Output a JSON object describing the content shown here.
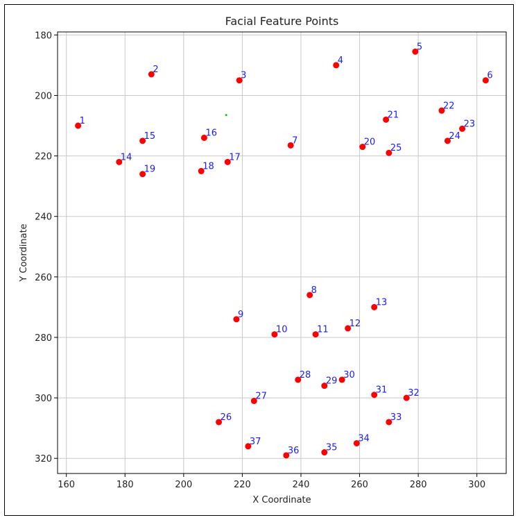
{
  "chart_data": {
    "type": "scatter",
    "title": "Facial Feature Points",
    "xlabel": "X Coordinate",
    "ylabel": "Y Coordinate",
    "xlim": [
      157,
      310
    ],
    "ylim": [
      325,
      179
    ],
    "y_inverted": true,
    "grid": true,
    "xticks": [
      160,
      180,
      200,
      220,
      240,
      260,
      280,
      300
    ],
    "yticks": [
      180,
      200,
      220,
      240,
      260,
      280,
      300,
      320
    ],
    "point_color": "#ff0000",
    "label_color": "#1a1aff",
    "points": [
      {
        "label": "1",
        "x": 164,
        "y": 210
      },
      {
        "label": "2",
        "x": 189,
        "y": 193
      },
      {
        "label": "3",
        "x": 219,
        "y": 195
      },
      {
        "label": "4",
        "x": 252,
        "y": 190
      },
      {
        "label": "5",
        "x": 279,
        "y": 185.5
      },
      {
        "label": "6",
        "x": 303,
        "y": 195
      },
      {
        "label": "7",
        "x": 236.5,
        "y": 216.5
      },
      {
        "label": "8",
        "x": 243,
        "y": 266
      },
      {
        "label": "9",
        "x": 218,
        "y": 274
      },
      {
        "label": "10",
        "x": 231,
        "y": 279
      },
      {
        "label": "11",
        "x": 245,
        "y": 279
      },
      {
        "label": "12",
        "x": 256,
        "y": 277
      },
      {
        "label": "13",
        "x": 265,
        "y": 270
      },
      {
        "label": "14",
        "x": 178,
        "y": 222
      },
      {
        "label": "15",
        "x": 186,
        "y": 215
      },
      {
        "label": "16",
        "x": 207,
        "y": 214
      },
      {
        "label": "17",
        "x": 215,
        "y": 222
      },
      {
        "label": "18",
        "x": 206,
        "y": 225
      },
      {
        "label": "19",
        "x": 186,
        "y": 226
      },
      {
        "label": "20",
        "x": 261,
        "y": 217
      },
      {
        "label": "21",
        "x": 269,
        "y": 208
      },
      {
        "label": "22",
        "x": 288,
        "y": 205
      },
      {
        "label": "23",
        "x": 295,
        "y": 211
      },
      {
        "label": "24",
        "x": 290,
        "y": 215
      },
      {
        "label": "25",
        "x": 270,
        "y": 219
      },
      {
        "label": "26",
        "x": 212,
        "y": 308
      },
      {
        "label": "27",
        "x": 224,
        "y": 301
      },
      {
        "label": "28",
        "x": 239,
        "y": 294
      },
      {
        "label": "29",
        "x": 248,
        "y": 296
      },
      {
        "label": "30",
        "x": 254,
        "y": 294
      },
      {
        "label": "31",
        "x": 265,
        "y": 299
      },
      {
        "label": "32",
        "x": 276,
        "y": 300
      },
      {
        "label": "33",
        "x": 270,
        "y": 308
      },
      {
        "label": "34",
        "x": 259,
        "y": 315
      },
      {
        "label": "35",
        "x": 248,
        "y": 318
      },
      {
        "label": "36",
        "x": 235,
        "y": 319
      },
      {
        "label": "37",
        "x": 222,
        "y": 316
      }
    ],
    "extra_points": [
      {
        "x": 214.5,
        "y": 206.5,
        "color": "#00cc00"
      }
    ]
  }
}
